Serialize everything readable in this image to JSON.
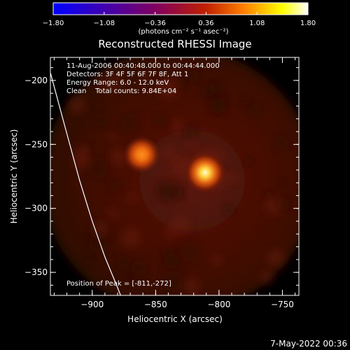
{
  "chart_data": {
    "type": "heatmap",
    "title": "Reconstructed RHESSI Image",
    "xlabel": "Heliocentric X (arcsec)",
    "ylabel": "Heliocentric Y (arcsec)",
    "xlim": [
      -933,
      -737
    ],
    "ylim": [
      -368,
      -182
    ],
    "xticks": [
      -900,
      -850,
      -800,
      -750
    ],
    "xtick_labels": [
      "−900",
      "−850",
      "−800",
      "−750"
    ],
    "yticks": [
      -200,
      -250,
      -300,
      -350
    ],
    "ytick_labels": [
      "−200",
      "−250",
      "−300",
      "−350"
    ],
    "colorbar": {
      "range": [
        -1.8,
        1.8
      ],
      "ticks": [
        -1.8,
        -1.08,
        -0.36,
        0.36,
        1.08,
        1.8
      ],
      "tick_labels": [
        "−1.80",
        "−1.08",
        "−0.36",
        "0.36",
        "1.08",
        "1.80"
      ],
      "unit_label": "(photons cm⁻² s⁻¹ asec⁻²)",
      "colormap": [
        "#0000ff",
        "#4000b0",
        "#800060",
        "#c02000",
        "#ff8000",
        "#ffff00",
        "#ffffff"
      ]
    },
    "sources": [
      {
        "x": -861,
        "y": -258,
        "peak": 0.75
      },
      {
        "x": -811,
        "y": -272,
        "peak": 1.0
      }
    ],
    "limb_curve": [
      [
        -933,
        -194
      ],
      [
        -921,
        -238
      ],
      [
        -910,
        -278
      ],
      [
        -900,
        -310
      ],
      [
        -890,
        -338
      ],
      [
        -880,
        -362
      ],
      [
        -876,
        -372
      ]
    ],
    "annotations": {
      "time": "11-Aug-2006 00:40:48.000 to 00:44:44.000",
      "detectors": "Detectors: 3F 4F 5F 6F 7F 8F, Att 1",
      "energy": "Energy Range: 6.0 - 12.0 keV",
      "clean": "Clean    Total counts: 9.84E+04",
      "peak": "Position of Peak = [-811,-272]"
    },
    "grid": false,
    "legend": "none"
  },
  "footer": {
    "date": "7-May-2022 00:36"
  }
}
